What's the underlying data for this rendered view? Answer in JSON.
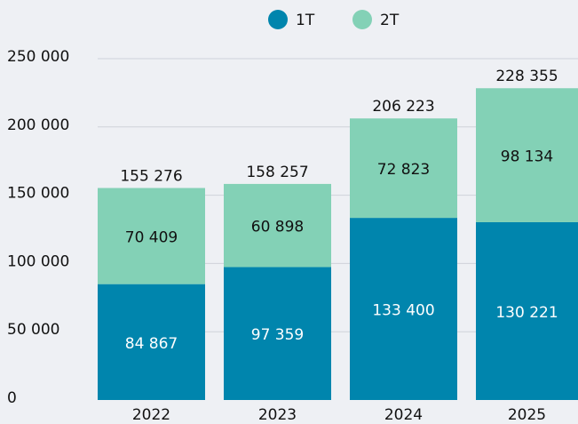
{
  "chart_data": {
    "type": "stacked_bar",
    "categories": [
      "2022",
      "2023",
      "2024",
      "2025"
    ],
    "series": [
      {
        "name": "1T",
        "color": "#0085ad",
        "values": [
          84867,
          97359,
          133400,
          130221
        ],
        "value_labels": [
          "84 867",
          "97 359",
          "133 400",
          "130 221"
        ]
      },
      {
        "name": "2T",
        "color": "#83d1b6",
        "values": [
          70409,
          60898,
          72823,
          98134
        ],
        "value_labels": [
          "70 409",
          "60 898",
          "72 823",
          "98 134"
        ]
      }
    ],
    "totals": [
      155276,
      158257,
      206223,
      228355
    ],
    "total_labels": [
      "155 276",
      "158 257",
      "206 223",
      "228 355"
    ],
    "ylim": [
      0,
      250000
    ],
    "yticks": [
      0,
      {
        "value": 50000,
        "label": "50 000"
      },
      {
        "value": 100000,
        "label": "100 000"
      },
      {
        "value": 150000,
        "label": "150 000"
      },
      {
        "value": 200000,
        "label": "200 000"
      },
      {
        "value": 250000,
        "label": "250 000"
      }
    ],
    "grid": true,
    "legend": "top"
  }
}
